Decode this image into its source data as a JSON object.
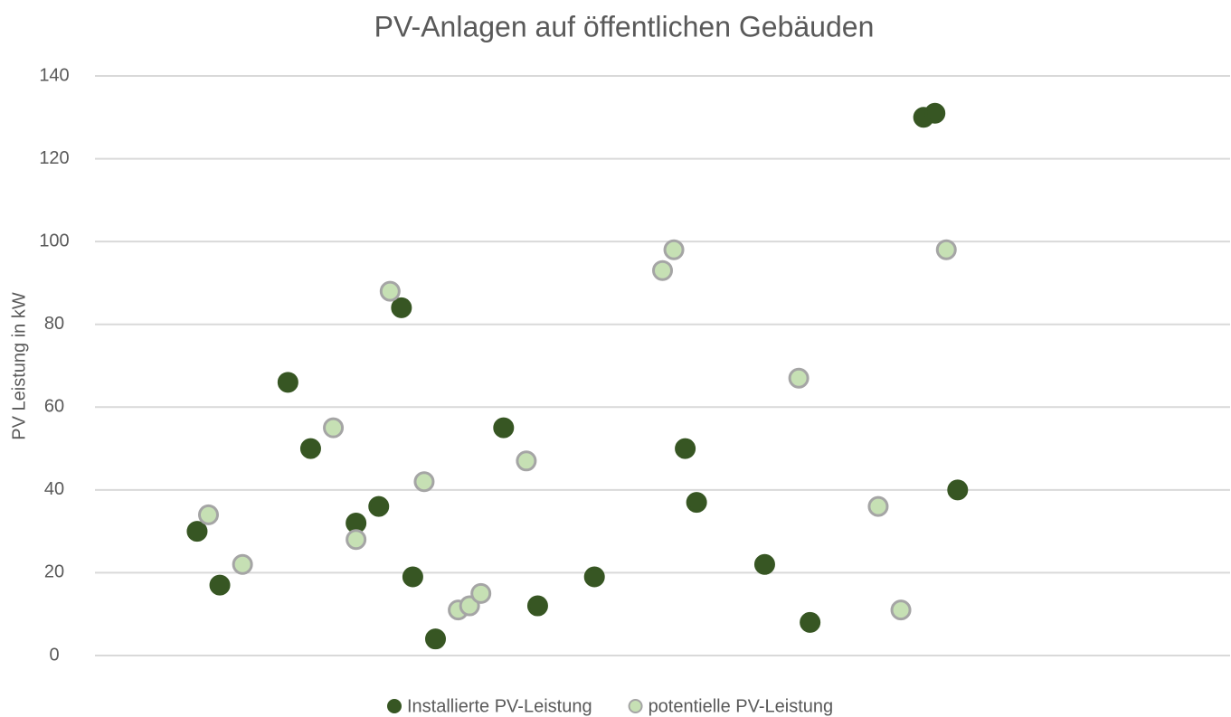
{
  "chart_data": {
    "type": "scatter",
    "title": "PV-Anlagen auf öffentlichen Gebäuden",
    "y_label": "PV Leistung in kW",
    "xlim": [
      0,
      100
    ],
    "ylim": [
      0,
      140
    ],
    "yticks": [
      0,
      20,
      40,
      60,
      80,
      100,
      120,
      140
    ],
    "grid": true,
    "legend": "bottom",
    "series": [
      {
        "name": "Installierte PV-Leistung",
        "color": "#375623",
        "edge": "#375623",
        "x": [
          9,
          11,
          17,
          19,
          23,
          25,
          27,
          28,
          30,
          36,
          39,
          44,
          52,
          53,
          59,
          63,
          73,
          74,
          76
        ],
        "values": [
          30,
          17,
          66,
          50,
          32,
          36,
          84,
          19,
          4,
          55,
          12,
          19,
          50,
          37,
          22,
          8,
          130,
          131,
          40
        ]
      },
      {
        "name": "potentielle PV-Leistung",
        "color": "#c6e0b4",
        "edge": "#a5a5a5",
        "x": [
          10,
          13,
          21,
          23,
          26,
          29,
          32,
          33,
          34,
          38,
          50,
          51,
          62,
          69,
          71,
          75
        ],
        "values": [
          34,
          22,
          55,
          28,
          88,
          42,
          11,
          12,
          15,
          47,
          93,
          98,
          67,
          36,
          11,
          98
        ]
      }
    ]
  }
}
